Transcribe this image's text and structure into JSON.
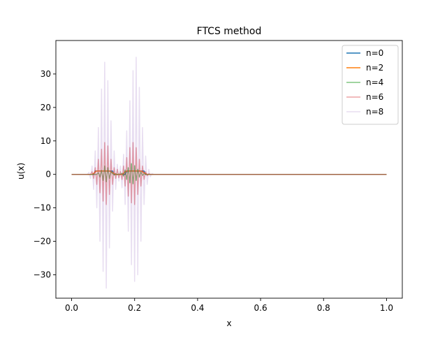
{
  "chart_data": {
    "type": "line",
    "title": "FTCS method",
    "xlabel": "x",
    "ylabel": "u(x)",
    "xlim": [
      -0.05,
      1.05
    ],
    "ylim": [
      -37,
      40
    ],
    "xticks": [
      0.0,
      0.2,
      0.4,
      0.6,
      0.8,
      1.0
    ],
    "xtick_labels": [
      "0.0",
      "0.2",
      "0.4",
      "0.6",
      "0.8",
      "1.0"
    ],
    "yticks": [
      -30,
      -20,
      -10,
      0,
      10,
      20,
      30
    ],
    "ytick_labels": [
      "−30",
      "−20",
      "−10",
      "0",
      "10",
      "20",
      "30"
    ],
    "grid": false,
    "legend_position": "top-right",
    "series": [
      {
        "name": "n=0",
        "color": "#1f77b4",
        "opacity": 1.0,
        "x": [
          0.0,
          0.07,
          0.075,
          0.13,
          0.135,
          0.17,
          0.175,
          0.23,
          0.235,
          1.0
        ],
        "y": [
          0,
          0,
          1,
          1,
          0,
          0,
          1,
          1,
          0,
          0
        ]
      },
      {
        "name": "n=2",
        "color": "#ff7f0e",
        "opacity": 1.0,
        "x": [
          0.0,
          0.065,
          0.07,
          0.075,
          0.08,
          0.09,
          0.11,
          0.12,
          0.125,
          0.13,
          0.135,
          0.14,
          0.16,
          0.165,
          0.17,
          0.175,
          0.18,
          0.22,
          0.225,
          0.23,
          0.235,
          0.24,
          1.0
        ],
        "y": [
          0,
          0,
          0.3,
          0.8,
          1.0,
          1.0,
          1.0,
          1.0,
          0.8,
          0.5,
          0.2,
          0,
          0,
          0.3,
          0.8,
          1.0,
          1.0,
          1.0,
          0.8,
          0.5,
          0.2,
          0,
          0
        ]
      },
      {
        "name": "n=4",
        "color": "#2ca02c",
        "opacity": 0.6,
        "x": [
          0.0,
          0.08,
          0.085,
          0.09,
          0.095,
          0.1,
          0.105,
          0.11,
          0.115,
          0.12,
          0.125,
          0.13,
          0.135,
          0.14,
          0.145,
          0.15,
          0.155,
          0.16,
          0.165,
          0.17,
          0.175,
          0.18,
          0.185,
          0.19,
          0.195,
          0.2,
          0.205,
          0.21,
          0.215,
          0.22,
          0.225,
          0.23,
          0.235,
          0.24,
          1.0
        ],
        "y": [
          0,
          0,
          0.5,
          -0.8,
          1.2,
          -1.8,
          2.5,
          -2.2,
          2.0,
          -1.2,
          0.8,
          0.3,
          -0.2,
          0.2,
          -0.1,
          0.1,
          0,
          0.3,
          -0.5,
          1.3,
          -1.5,
          2.0,
          -2.5,
          3.2,
          -2.8,
          2.6,
          -1.8,
          1.5,
          -0.8,
          0.7,
          -0.3,
          0.2,
          0,
          0,
          0
        ]
      },
      {
        "name": "n=6",
        "color": "#d62728",
        "opacity": 0.42,
        "x": [
          0.0,
          0.06,
          0.065,
          0.07,
          0.075,
          0.08,
          0.085,
          0.09,
          0.095,
          0.1,
          0.105,
          0.11,
          0.115,
          0.12,
          0.125,
          0.13,
          0.135,
          0.14,
          0.145,
          0.15,
          0.155,
          0.16,
          0.165,
          0.17,
          0.175,
          0.18,
          0.185,
          0.19,
          0.195,
          0.2,
          0.205,
          0.21,
          0.215,
          0.22,
          0.225,
          0.23,
          0.235,
          0.24,
          0.245,
          0.25,
          1.0
        ],
        "y": [
          0,
          0,
          0.8,
          -1.2,
          2.0,
          -3.0,
          4.5,
          -5.5,
          7.5,
          -8.0,
          9.5,
          -9.0,
          8.5,
          -6.0,
          4.5,
          -3.0,
          2.0,
          -1.2,
          1.5,
          -1.0,
          0.8,
          -1.5,
          2.5,
          -3.5,
          5.0,
          -6.5,
          8.0,
          -8.5,
          9.5,
          -9.0,
          8.0,
          -6.0,
          4.5,
          -3.5,
          2.5,
          -1.5,
          0.8,
          -0.4,
          0.2,
          0,
          0
        ]
      },
      {
        "name": "n=8",
        "color": "#9467bd",
        "opacity": 0.22,
        "x": [
          0.0,
          0.05,
          0.055,
          0.06,
          0.065,
          0.07,
          0.075,
          0.08,
          0.085,
          0.09,
          0.095,
          0.1,
          0.105,
          0.11,
          0.115,
          0.12,
          0.125,
          0.13,
          0.135,
          0.14,
          0.145,
          0.15,
          0.155,
          0.16,
          0.165,
          0.17,
          0.175,
          0.18,
          0.185,
          0.19,
          0.195,
          0.2,
          0.205,
          0.21,
          0.215,
          0.22,
          0.225,
          0.23,
          0.235,
          0.24,
          0.245,
          0.25,
          0.255,
          0.26,
          1.0
        ],
        "y": [
          0,
          0,
          0.6,
          -1.2,
          2.5,
          -4.5,
          7.0,
          -10.0,
          14.0,
          -20.0,
          25.5,
          -29.0,
          33.5,
          -34.0,
          28.0,
          -22.0,
          16.0,
          -11.0,
          7.0,
          -4.5,
          3.0,
          -2.0,
          2.5,
          -4.0,
          6.0,
          -9.0,
          13.0,
          -17.0,
          22.0,
          -27.0,
          31.0,
          -32.0,
          35.0,
          -30.0,
          26.0,
          -20.0,
          14.0,
          -9.0,
          5.5,
          -3.0,
          1.5,
          -0.7,
          0.3,
          0,
          0
        ]
      }
    ]
  }
}
